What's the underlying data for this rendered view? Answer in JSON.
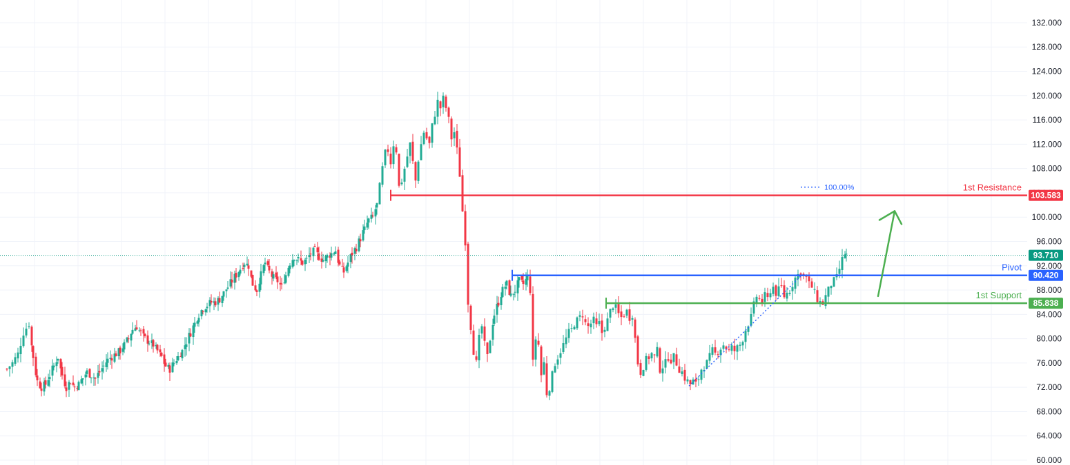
{
  "colors": {
    "up": "#22ab94",
    "down": "#f23645",
    "resistance": "#f23645",
    "pivot": "#2962ff",
    "support": "#4caf50",
    "last": "#089981",
    "fib": "#2962ff",
    "arrow": "#4caf50",
    "grid": "#f0f3fa"
  },
  "chart_data": {
    "type": "candlestick",
    "y_axis": {
      "min": 60,
      "max": 132,
      "ticks": [
        "60.000",
        "64.000",
        "68.000",
        "72.000",
        "76.000",
        "80.000",
        "84.000",
        "88.000",
        "92.000",
        "96.000",
        "100.000",
        "104.000",
        "108.000",
        "112.000",
        "116.000",
        "120.000",
        "124.000",
        "128.000",
        "132.000"
      ],
      "side": "right"
    },
    "grid": true,
    "close_path": [
      [
        0,
        75
      ],
      [
        8,
        76
      ],
      [
        16,
        77.5
      ],
      [
        24,
        81
      ],
      [
        32,
        82.5
      ],
      [
        38,
        77
      ],
      [
        44,
        73
      ],
      [
        50,
        72
      ],
      [
        56,
        72.5
      ],
      [
        62,
        74
      ],
      [
        68,
        75.5
      ],
      [
        74,
        77
      ],
      [
        80,
        74
      ],
      [
        86,
        72
      ],
      [
        92,
        73
      ],
      [
        98,
        72
      ],
      [
        104,
        72.5
      ],
      [
        110,
        73.5
      ],
      [
        116,
        74.5
      ],
      [
        122,
        74
      ],
      [
        128,
        73.5
      ],
      [
        134,
        74.5
      ],
      [
        140,
        75.5
      ],
      [
        146,
        76.5
      ],
      [
        152,
        77
      ],
      [
        158,
        77.5
      ],
      [
        164,
        78
      ],
      [
        170,
        79
      ],
      [
        176,
        80
      ],
      [
        182,
        81.5
      ],
      [
        188,
        82
      ],
      [
        194,
        81
      ],
      [
        200,
        80
      ],
      [
        206,
        79.5
      ],
      [
        212,
        79
      ],
      [
        218,
        78
      ],
      [
        224,
        77
      ],
      [
        230,
        75.5
      ],
      [
        236,
        75
      ],
      [
        242,
        76
      ],
      [
        248,
        77
      ],
      [
        254,
        78
      ],
      [
        260,
        79.5
      ],
      [
        266,
        81
      ],
      [
        272,
        82.5
      ],
      [
        278,
        84
      ],
      [
        284,
        85
      ],
      [
        290,
        85.5
      ],
      [
        296,
        86
      ],
      [
        302,
        86
      ],
      [
        308,
        86.5
      ],
      [
        314,
        87.5
      ],
      [
        320,
        88.5
      ],
      [
        326,
        89.5
      ],
      [
        332,
        90.5
      ],
      [
        338,
        91.5
      ],
      [
        344,
        92.5
      ],
      [
        350,
        92
      ],
      [
        356,
        89
      ],
      [
        362,
        88
      ],
      [
        368,
        90.5
      ],
      [
        374,
        92.5
      ],
      [
        380,
        91
      ],
      [
        386,
        90
      ],
      [
        392,
        89.5
      ],
      [
        398,
        88.5
      ],
      [
        404,
        90.5
      ],
      [
        410,
        92.5
      ],
      [
        416,
        93.5
      ],
      [
        422,
        93
      ],
      [
        428,
        92.5
      ],
      [
        434,
        93
      ],
      [
        440,
        94
      ],
      [
        446,
        94.5
      ],
      [
        452,
        93.5
      ],
      [
        458,
        93
      ],
      [
        464,
        93.5
      ],
      [
        470,
        94
      ],
      [
        476,
        94.5
      ],
      [
        482,
        92
      ],
      [
        488,
        91
      ],
      [
        494,
        92.5
      ],
      [
        500,
        94
      ],
      [
        506,
        95
      ],
      [
        512,
        96.5
      ],
      [
        518,
        98
      ],
      [
        524,
        99.5
      ],
      [
        530,
        100
      ],
      [
        536,
        102
      ],
      [
        540,
        105
      ],
      [
        544,
        108
      ],
      [
        548,
        110.5
      ],
      [
        552,
        111
      ],
      [
        556,
        109
      ],
      [
        560,
        112
      ],
      [
        564,
        111
      ],
      [
        568,
        105
      ],
      [
        572,
        106
      ],
      [
        576,
        108
      ],
      [
        580,
        110
      ],
      [
        584,
        112
      ],
      [
        588,
        109
      ],
      [
        592,
        106
      ],
      [
        596,
        109.5
      ],
      [
        600,
        112
      ],
      [
        604,
        114
      ],
      [
        608,
        113
      ],
      [
        612,
        112
      ],
      [
        616,
        115
      ],
      [
        620,
        117
      ],
      [
        624,
        119
      ],
      [
        628,
        118
      ],
      [
        632,
        119.5
      ],
      [
        636,
        118
      ],
      [
        640,
        116
      ],
      [
        644,
        113
      ],
      [
        648,
        114
      ],
      [
        652,
        111
      ],
      [
        656,
        107
      ],
      [
        660,
        101
      ],
      [
        664,
        96
      ],
      [
        668,
        86
      ],
      [
        672,
        82
      ],
      [
        676,
        78
      ],
      [
        680,
        76
      ],
      [
        684,
        80
      ],
      [
        688,
        82
      ],
      [
        692,
        79
      ],
      [
        696,
        77
      ],
      [
        700,
        80
      ],
      [
        706,
        84
      ],
      [
        712,
        86
      ],
      [
        718,
        88
      ],
      [
        724,
        89
      ],
      [
        730,
        87
      ],
      [
        736,
        88
      ],
      [
        742,
        89.5
      ],
      [
        748,
        89
      ],
      [
        754,
        90
      ],
      [
        758,
        88
      ],
      [
        762,
        76
      ],
      [
        766,
        80
      ],
      [
        770,
        79
      ],
      [
        774,
        74
      ],
      [
        778,
        76
      ],
      [
        782,
        71
      ],
      [
        786,
        72
      ],
      [
        790,
        74
      ],
      [
        794,
        76
      ],
      [
        798,
        77
      ],
      [
        802,
        78
      ],
      [
        806,
        79
      ],
      [
        810,
        80
      ],
      [
        814,
        81
      ],
      [
        818,
        81.5
      ],
      [
        822,
        82.5
      ],
      [
        826,
        83
      ],
      [
        830,
        83.5
      ],
      [
        834,
        84
      ],
      [
        838,
        82.5
      ],
      [
        842,
        82
      ],
      [
        846,
        82.5
      ],
      [
        850,
        83
      ],
      [
        854,
        82
      ],
      [
        858,
        82.5
      ],
      [
        862,
        81
      ],
      [
        866,
        82
      ],
      [
        870,
        83
      ],
      [
        874,
        84.5
      ],
      [
        878,
        85.5
      ],
      [
        882,
        85
      ],
      [
        886,
        84
      ],
      [
        890,
        83.5
      ],
      [
        894,
        84
      ],
      [
        898,
        84.5
      ],
      [
        902,
        83.5
      ],
      [
        906,
        84
      ],
      [
        910,
        80
      ],
      [
        914,
        76
      ],
      [
        918,
        74.5
      ],
      [
        922,
        75.5
      ],
      [
        926,
        76.5
      ],
      [
        930,
        77
      ],
      [
        934,
        77.5
      ],
      [
        938,
        77
      ],
      [
        942,
        78
      ],
      [
        946,
        75
      ],
      [
        950,
        75.5
      ],
      [
        954,
        76
      ],
      [
        958,
        77
      ],
      [
        962,
        76.5
      ],
      [
        966,
        77
      ],
      [
        970,
        76
      ],
      [
        974,
        75
      ],
      [
        978,
        74.5
      ],
      [
        982,
        73.5
      ],
      [
        986,
        73
      ],
      [
        990,
        72.5
      ],
      [
        994,
        73
      ],
      [
        998,
        72.5
      ],
      [
        1002,
        73.5
      ],
      [
        1006,
        75
      ],
      [
        1010,
        75.5
      ],
      [
        1014,
        76
      ],
      [
        1018,
        77
      ],
      [
        1022,
        78
      ],
      [
        1026,
        77.5
      ],
      [
        1030,
        78
      ],
      [
        1034,
        78.5
      ],
      [
        1038,
        79
      ],
      [
        1042,
        78.5
      ],
      [
        1046,
        78
      ],
      [
        1050,
        78.5
      ],
      [
        1054,
        78
      ],
      [
        1058,
        78.5
      ],
      [
        1062,
        79
      ],
      [
        1066,
        80
      ],
      [
        1070,
        81.5
      ],
      [
        1074,
        82.5
      ],
      [
        1078,
        83.5
      ],
      [
        1082,
        85.5
      ],
      [
        1086,
        87
      ],
      [
        1090,
        86.5
      ],
      [
        1094,
        86
      ],
      [
        1098,
        87
      ],
      [
        1102,
        86.5
      ],
      [
        1106,
        88
      ],
      [
        1110,
        88.5
      ],
      [
        1114,
        87.5
      ],
      [
        1118,
        88
      ],
      [
        1122,
        88.5
      ],
      [
        1126,
        87
      ],
      [
        1130,
        87.5
      ],
      [
        1134,
        88
      ],
      [
        1138,
        89
      ],
      [
        1142,
        90
      ],
      [
        1146,
        90.5
      ],
      [
        1150,
        91
      ],
      [
        1154,
        90.5
      ],
      [
        1158,
        90
      ],
      [
        1162,
        89
      ],
      [
        1166,
        88.5
      ],
      [
        1170,
        87.5
      ],
      [
        1174,
        86.5
      ],
      [
        1178,
        86
      ],
      [
        1182,
        85.8
      ],
      [
        1186,
        87
      ],
      [
        1190,
        88
      ],
      [
        1194,
        89
      ],
      [
        1198,
        89.5
      ],
      [
        1202,
        90
      ],
      [
        1206,
        91.5
      ],
      [
        1210,
        93
      ],
      [
        1214,
        94
      ],
      [
        1216,
        93.71
      ]
    ],
    "last_price": 93.71,
    "last_price_label": "93.710",
    "levels": [
      {
        "key": "resistance",
        "name": "1st Resistance",
        "value": 103.583,
        "label": "103.583"
      },
      {
        "key": "pivot",
        "name": "Pivot",
        "value": 90.42,
        "label": "90.420"
      },
      {
        "key": "support",
        "name": "1st Support",
        "value": 85.838,
        "label": "85.838"
      }
    ],
    "fib_label": "100.00%",
    "fib_from": {
      "bar": 998,
      "price": 72.2
    },
    "fib_to": {
      "bar": 1160,
      "price": 90.3
    },
    "level_starts": {
      "resistance": 566,
      "pivot": 742,
      "support": 878
    },
    "arrow_from": {
      "bar": 1272,
      "price": 87.0
    },
    "arrow_to": {
      "bar": 1296,
      "price": 101.0
    }
  }
}
